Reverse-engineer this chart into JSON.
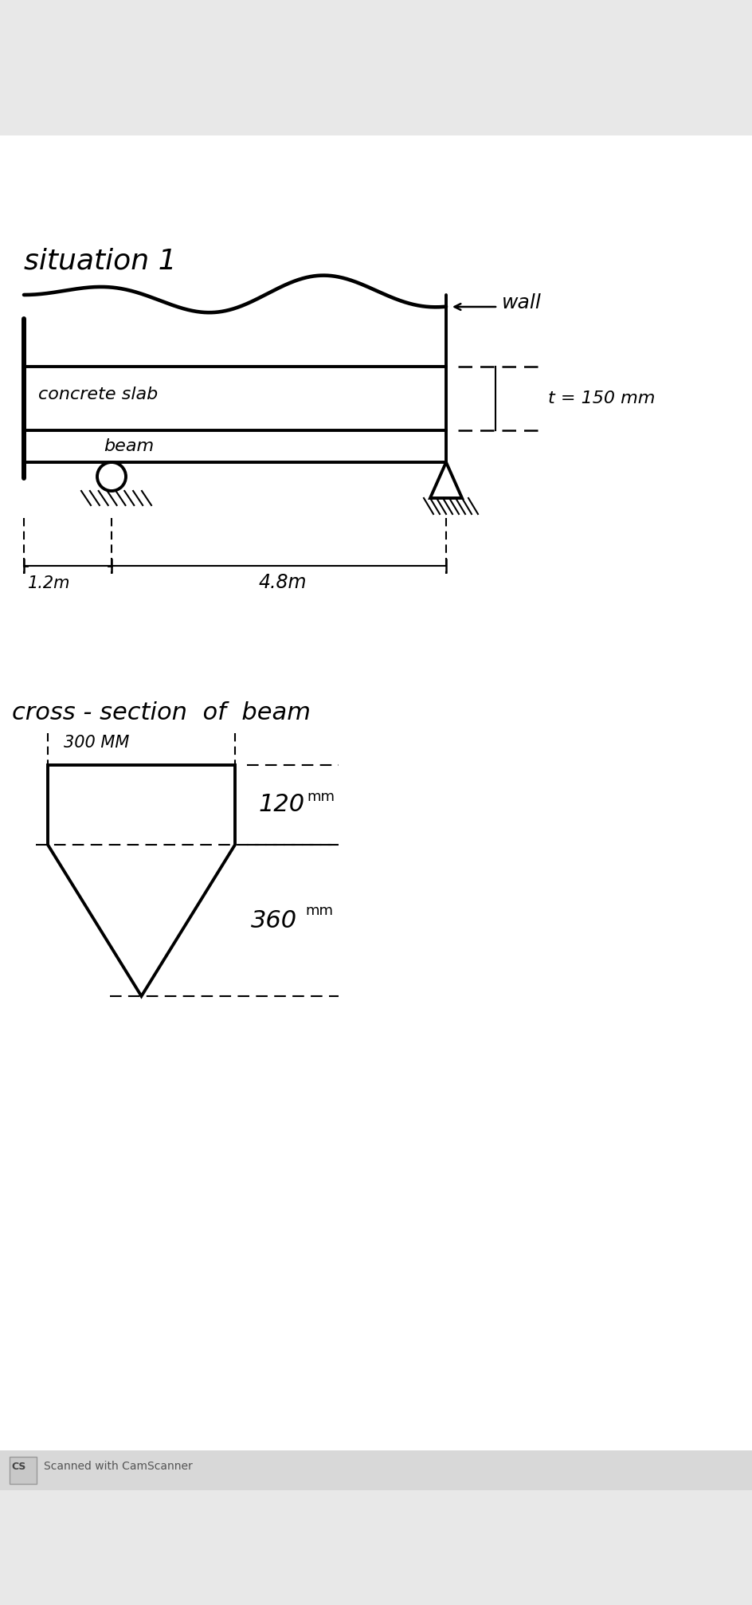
{
  "bg_color_top": "#e8e8e8",
  "bg_color_paper": "#ffffff",
  "bg_color_bottom": "#e0e0e0",
  "black": "#000000",
  "gray": "#666666",
  "lightgray": "#cccccc",
  "title": "situation 1",
  "wall_label": "wall",
  "concrete_slab_label": "concrete slab",
  "beam_label": "beam",
  "t_label": "t = 150 mm",
  "dim1_label": "1.2m",
  "dim2_label": "4.8m",
  "cross_section_label": "cross - section  of  beam",
  "width_label": "300 MM",
  "height1_label": "120",
  "height1_unit": "mm",
  "height2_label": "360",
  "height2_unit": "mm",
  "camscanner_label": "Scanned with CamScanner",
  "fig_w": 9.45,
  "fig_h": 20.14,
  "dpi": 100
}
